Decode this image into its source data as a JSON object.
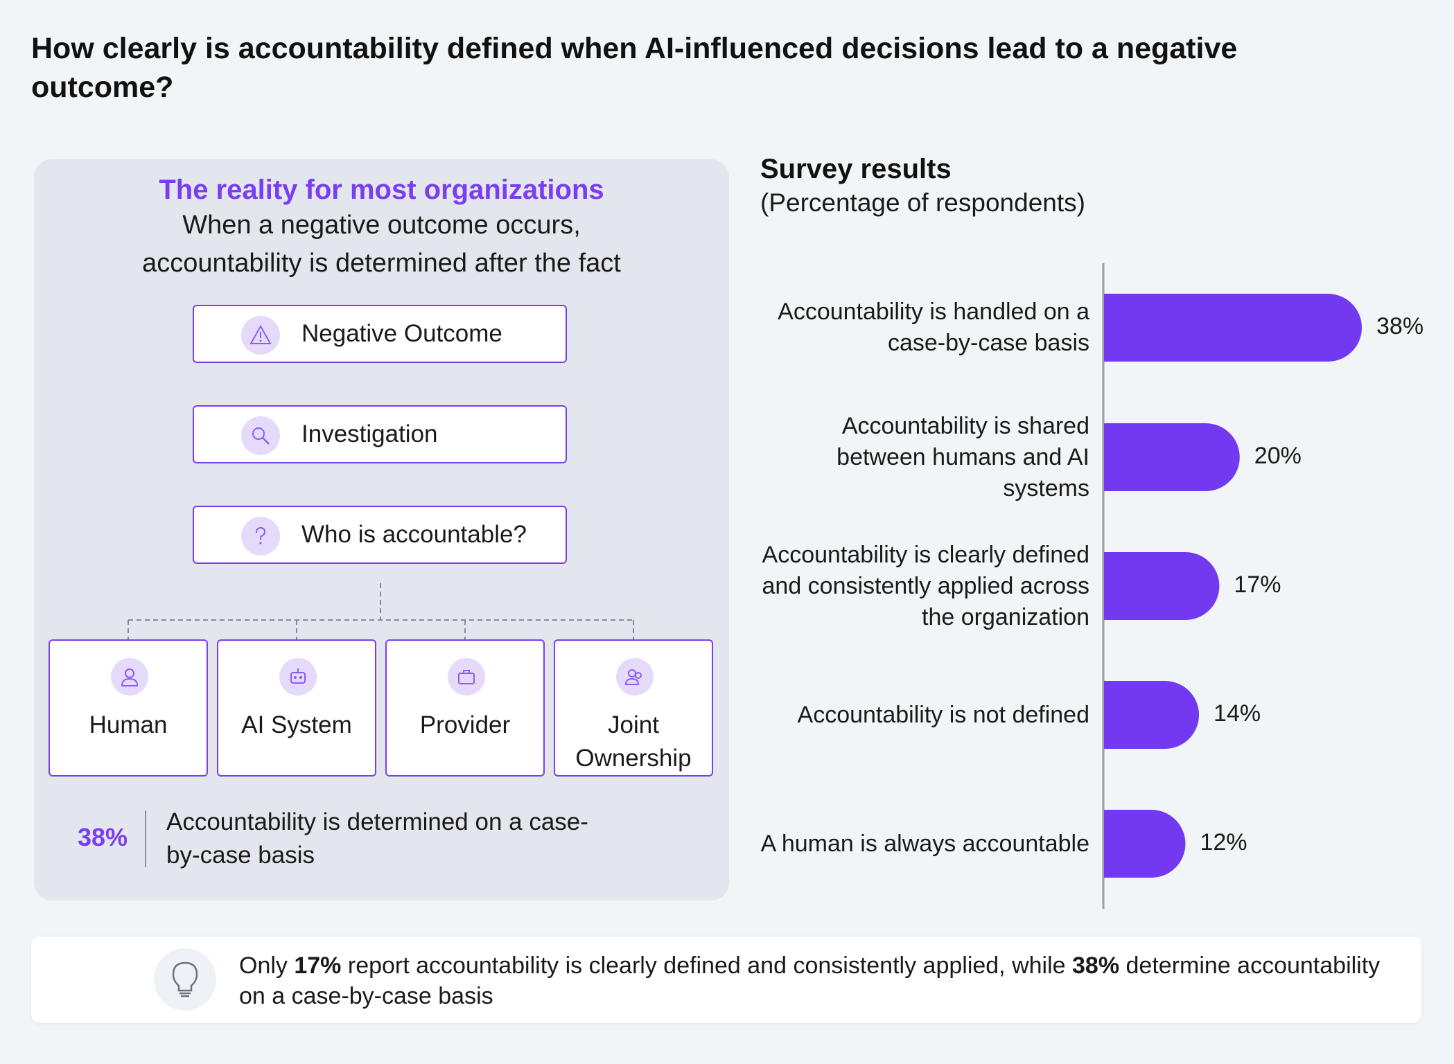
{
  "title": "How clearly is accountability defined when AI-influenced decisions lead to a negative outcome?",
  "panel": {
    "heading": "The reality for most organizations",
    "subtitle_line1": "When a negative outcome occurs,",
    "subtitle_line2": "accountability is determined after the fact",
    "flow": [
      {
        "label": "Negative Outcome",
        "icon": "warning-icon"
      },
      {
        "label": "Investigation",
        "icon": "magnifier-icon"
      },
      {
        "label": "Who is accountable?",
        "icon": "question-icon"
      }
    ],
    "owners": [
      {
        "label": "Human",
        "icon": "person-icon"
      },
      {
        "label": "AI System",
        "icon": "robot-icon"
      },
      {
        "label": "Provider",
        "icon": "briefcase-icon"
      },
      {
        "label": "Joint Ownership",
        "icon": "group-icon"
      }
    ],
    "stat_value": "38%",
    "stat_text": "Accountability is determined on a case-by-case basis"
  },
  "chart_title": "Survey results",
  "chart_subtitle": "(Percentage of respondents)",
  "chart_data": {
    "type": "bar",
    "orientation": "horizontal",
    "title": "Survey results",
    "subtitle": "(Percentage of respondents)",
    "categories": [
      "Accountability is handled on a case-by-case basis",
      "Accountability is shared between humans and AI systems",
      "Accountability is clearly defined and consistently applied across the organization",
      "Accountability is not defined",
      "A human is always accountable"
    ],
    "values": [
      38,
      20,
      17,
      14,
      12
    ],
    "value_labels": [
      "38%",
      "20%",
      "17%",
      "14%",
      "12%"
    ],
    "xlim": [
      0,
      40
    ],
    "grid": false,
    "bar_color": "#7339f0"
  },
  "insight": {
    "prefix": "Only ",
    "highlight1": "17%",
    "middle": " report accountability is clearly defined and consistently applied, while ",
    "highlight2": "38%",
    "suffix": " determine accountability on a case-by-case basis",
    "icon": "lightbulb-icon"
  },
  "colors": {
    "accent": "#7a3df0",
    "bar": "#7339f0",
    "icon_bg": "#e6dafb",
    "background": "#f1f5f8",
    "panel": "#e3e7ed"
  }
}
